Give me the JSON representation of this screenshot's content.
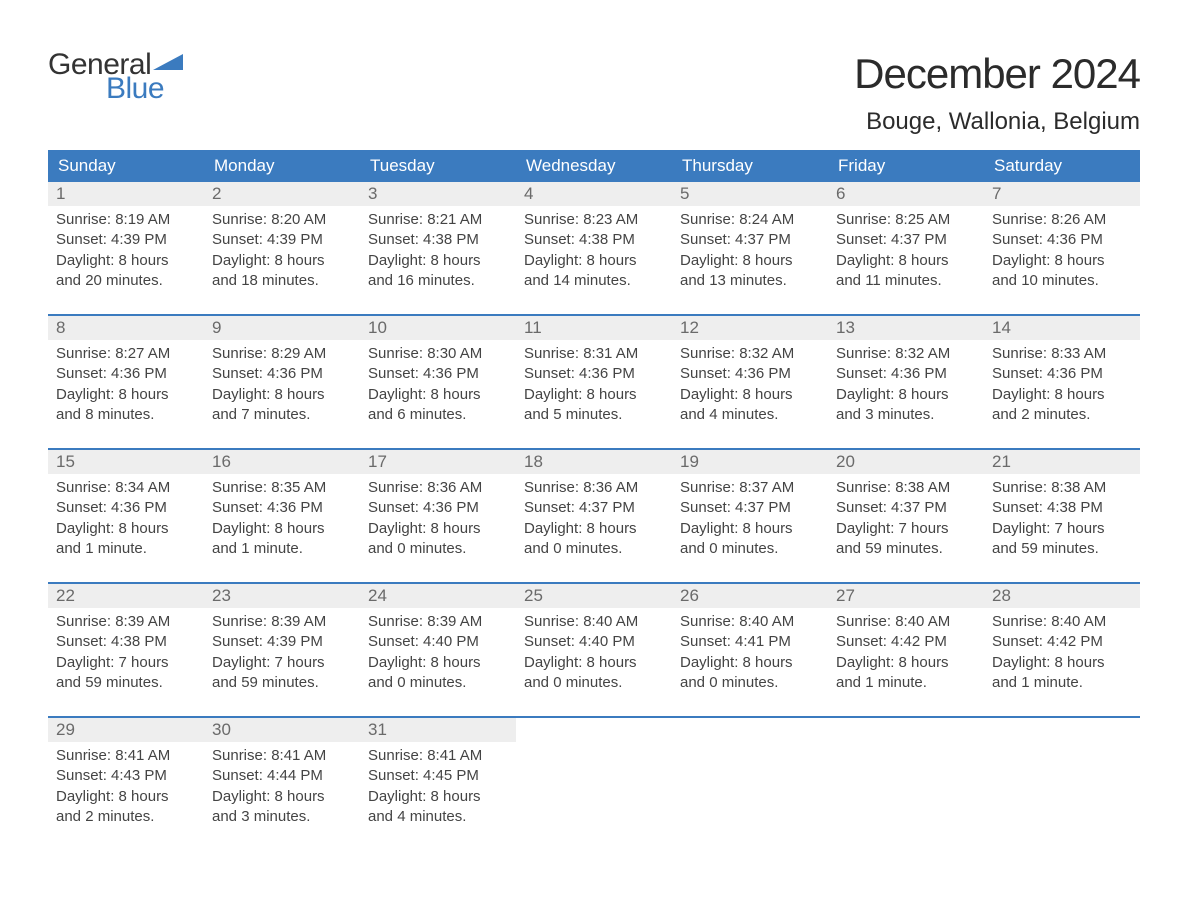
{
  "logo": {
    "text_general": "General",
    "text_blue": "Blue",
    "tri_color": "#3b7bbf"
  },
  "title": "December 2024",
  "location": "Bouge, Wallonia, Belgium",
  "colors": {
    "header_bg": "#3b7bbf",
    "header_text": "#ffffff",
    "daynum_bg": "#eeeeee",
    "daynum_text": "#6a6a6a",
    "body_text": "#444444",
    "week_border": "#3b7bbf",
    "page_bg": "#ffffff"
  },
  "typography": {
    "title_fontsize": 42,
    "location_fontsize": 24,
    "dayname_fontsize": 17,
    "daynum_fontsize": 17,
    "body_fontsize": 15,
    "font_family": "Arial"
  },
  "day_names": [
    "Sunday",
    "Monday",
    "Tuesday",
    "Wednesday",
    "Thursday",
    "Friday",
    "Saturday"
  ],
  "weeks": [
    [
      {
        "n": "1",
        "sr": "Sunrise: 8:19 AM",
        "ss": "Sunset: 4:39 PM",
        "d1": "Daylight: 8 hours",
        "d2": "and 20 minutes."
      },
      {
        "n": "2",
        "sr": "Sunrise: 8:20 AM",
        "ss": "Sunset: 4:39 PM",
        "d1": "Daylight: 8 hours",
        "d2": "and 18 minutes."
      },
      {
        "n": "3",
        "sr": "Sunrise: 8:21 AM",
        "ss": "Sunset: 4:38 PM",
        "d1": "Daylight: 8 hours",
        "d2": "and 16 minutes."
      },
      {
        "n": "4",
        "sr": "Sunrise: 8:23 AM",
        "ss": "Sunset: 4:38 PM",
        "d1": "Daylight: 8 hours",
        "d2": "and 14 minutes."
      },
      {
        "n": "5",
        "sr": "Sunrise: 8:24 AM",
        "ss": "Sunset: 4:37 PM",
        "d1": "Daylight: 8 hours",
        "d2": "and 13 minutes."
      },
      {
        "n": "6",
        "sr": "Sunrise: 8:25 AM",
        "ss": "Sunset: 4:37 PM",
        "d1": "Daylight: 8 hours",
        "d2": "and 11 minutes."
      },
      {
        "n": "7",
        "sr": "Sunrise: 8:26 AM",
        "ss": "Sunset: 4:36 PM",
        "d1": "Daylight: 8 hours",
        "d2": "and 10 minutes."
      }
    ],
    [
      {
        "n": "8",
        "sr": "Sunrise: 8:27 AM",
        "ss": "Sunset: 4:36 PM",
        "d1": "Daylight: 8 hours",
        "d2": "and 8 minutes."
      },
      {
        "n": "9",
        "sr": "Sunrise: 8:29 AM",
        "ss": "Sunset: 4:36 PM",
        "d1": "Daylight: 8 hours",
        "d2": "and 7 minutes."
      },
      {
        "n": "10",
        "sr": "Sunrise: 8:30 AM",
        "ss": "Sunset: 4:36 PM",
        "d1": "Daylight: 8 hours",
        "d2": "and 6 minutes."
      },
      {
        "n": "11",
        "sr": "Sunrise: 8:31 AM",
        "ss": "Sunset: 4:36 PM",
        "d1": "Daylight: 8 hours",
        "d2": "and 5 minutes."
      },
      {
        "n": "12",
        "sr": "Sunrise: 8:32 AM",
        "ss": "Sunset: 4:36 PM",
        "d1": "Daylight: 8 hours",
        "d2": "and 4 minutes."
      },
      {
        "n": "13",
        "sr": "Sunrise: 8:32 AM",
        "ss": "Sunset: 4:36 PM",
        "d1": "Daylight: 8 hours",
        "d2": "and 3 minutes."
      },
      {
        "n": "14",
        "sr": "Sunrise: 8:33 AM",
        "ss": "Sunset: 4:36 PM",
        "d1": "Daylight: 8 hours",
        "d2": "and 2 minutes."
      }
    ],
    [
      {
        "n": "15",
        "sr": "Sunrise: 8:34 AM",
        "ss": "Sunset: 4:36 PM",
        "d1": "Daylight: 8 hours",
        "d2": "and 1 minute."
      },
      {
        "n": "16",
        "sr": "Sunrise: 8:35 AM",
        "ss": "Sunset: 4:36 PM",
        "d1": "Daylight: 8 hours",
        "d2": "and 1 minute."
      },
      {
        "n": "17",
        "sr": "Sunrise: 8:36 AM",
        "ss": "Sunset: 4:36 PM",
        "d1": "Daylight: 8 hours",
        "d2": "and 0 minutes."
      },
      {
        "n": "18",
        "sr": "Sunrise: 8:36 AM",
        "ss": "Sunset: 4:37 PM",
        "d1": "Daylight: 8 hours",
        "d2": "and 0 minutes."
      },
      {
        "n": "19",
        "sr": "Sunrise: 8:37 AM",
        "ss": "Sunset: 4:37 PM",
        "d1": "Daylight: 8 hours",
        "d2": "and 0 minutes."
      },
      {
        "n": "20",
        "sr": "Sunrise: 8:38 AM",
        "ss": "Sunset: 4:37 PM",
        "d1": "Daylight: 7 hours",
        "d2": "and 59 minutes."
      },
      {
        "n": "21",
        "sr": "Sunrise: 8:38 AM",
        "ss": "Sunset: 4:38 PM",
        "d1": "Daylight: 7 hours",
        "d2": "and 59 minutes."
      }
    ],
    [
      {
        "n": "22",
        "sr": "Sunrise: 8:39 AM",
        "ss": "Sunset: 4:38 PM",
        "d1": "Daylight: 7 hours",
        "d2": "and 59 minutes."
      },
      {
        "n": "23",
        "sr": "Sunrise: 8:39 AM",
        "ss": "Sunset: 4:39 PM",
        "d1": "Daylight: 7 hours",
        "d2": "and 59 minutes."
      },
      {
        "n": "24",
        "sr": "Sunrise: 8:39 AM",
        "ss": "Sunset: 4:40 PM",
        "d1": "Daylight: 8 hours",
        "d2": "and 0 minutes."
      },
      {
        "n": "25",
        "sr": "Sunrise: 8:40 AM",
        "ss": "Sunset: 4:40 PM",
        "d1": "Daylight: 8 hours",
        "d2": "and 0 minutes."
      },
      {
        "n": "26",
        "sr": "Sunrise: 8:40 AM",
        "ss": "Sunset: 4:41 PM",
        "d1": "Daylight: 8 hours",
        "d2": "and 0 minutes."
      },
      {
        "n": "27",
        "sr": "Sunrise: 8:40 AM",
        "ss": "Sunset: 4:42 PM",
        "d1": "Daylight: 8 hours",
        "d2": "and 1 minute."
      },
      {
        "n": "28",
        "sr": "Sunrise: 8:40 AM",
        "ss": "Sunset: 4:42 PM",
        "d1": "Daylight: 8 hours",
        "d2": "and 1 minute."
      }
    ],
    [
      {
        "n": "29",
        "sr": "Sunrise: 8:41 AM",
        "ss": "Sunset: 4:43 PM",
        "d1": "Daylight: 8 hours",
        "d2": "and 2 minutes."
      },
      {
        "n": "30",
        "sr": "Sunrise: 8:41 AM",
        "ss": "Sunset: 4:44 PM",
        "d1": "Daylight: 8 hours",
        "d2": "and 3 minutes."
      },
      {
        "n": "31",
        "sr": "Sunrise: 8:41 AM",
        "ss": "Sunset: 4:45 PM",
        "d1": "Daylight: 8 hours",
        "d2": "and 4 minutes."
      },
      null,
      null,
      null,
      null
    ]
  ]
}
